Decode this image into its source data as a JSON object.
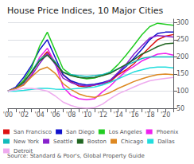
{
  "chart_data": {
    "type": "line",
    "title": "House Price Indices, 10 Major Cities",
    "annotations": [
      "Source: Standard & Poor's, Global Property Guide"
    ],
    "categories": [
      "'00",
      null,
      "'02",
      null,
      "'04",
      null,
      "'06",
      null,
      "'08",
      null,
      "'10",
      null,
      "'12",
      null,
      "'14",
      null,
      "'16",
      null,
      "'18",
      null,
      "'20",
      null
    ],
    "series": [
      {
        "name": "San Francisco",
        "color": "#dd1111",
        "values": [
          100,
          110,
          128,
          155,
          190,
          215,
          185,
          148,
          128,
          115,
          112,
          118,
          122,
          128,
          148,
          162,
          180,
          205,
          228,
          250,
          260,
          265
        ]
      },
      {
        "name": "San Diego",
        "color": "#1111cc",
        "values": [
          100,
          112,
          140,
          175,
          220,
          250,
          198,
          148,
          130,
          122,
          118,
          120,
          125,
          132,
          152,
          172,
          196,
          222,
          250,
          268,
          272,
          272
        ]
      },
      {
        "name": "Los Angeles",
        "color": "#22cc22",
        "values": [
          100,
          108,
          132,
          168,
          230,
          272,
          218,
          165,
          148,
          140,
          136,
          138,
          146,
          156,
          178,
          205,
          234,
          264,
          288,
          298,
          295,
          292
        ]
      },
      {
        "name": "Phoenix",
        "color": "#ee22ee",
        "values": [
          100,
          108,
          118,
          148,
          198,
          225,
          182,
          112,
          88,
          78,
          75,
          78,
          98,
          115,
          138,
          158,
          172,
          188,
          198,
          208,
          210,
          205
        ]
      },
      {
        "name": "New York",
        "color": "#11bbbb",
        "values": [
          100,
          108,
          125,
          158,
          192,
          208,
          185,
          155,
          148,
          145,
          143,
          145,
          148,
          155,
          165,
          175,
          185,
          195,
          200,
          200,
          200,
          200
        ]
      },
      {
        "name": "Seattle",
        "color": "#8822cc",
        "values": [
          100,
          108,
          120,
          145,
          180,
          210,
          178,
          138,
          125,
          118,
          115,
          118,
          122,
          132,
          155,
          178,
          208,
          232,
          255,
          262,
          260,
          258
        ]
      },
      {
        "name": "Boston",
        "color": "#226622",
        "values": [
          100,
          108,
          126,
          155,
          188,
          205,
          182,
          155,
          145,
          140,
          138,
          140,
          145,
          152,
          165,
          178,
          192,
          208,
          218,
          230,
          238,
          240
        ]
      },
      {
        "name": "Chicago",
        "color": "#dd8822",
        "values": [
          100,
          108,
          118,
          142,
          162,
          170,
          152,
          122,
          105,
          92,
          85,
          82,
          88,
          96,
          108,
          118,
          128,
          136,
          143,
          148,
          150,
          148
        ]
      },
      {
        "name": "Dallas",
        "color": "#22dddd",
        "values": [
          100,
          100,
          102,
          105,
          108,
          108,
          106,
          105,
          106,
          108,
          110,
          112,
          118,
          126,
          136,
          146,
          156,
          162,
          168,
          170,
          170,
          168
        ]
      },
      {
        "name": "Detroit",
        "color": "#eeaaee",
        "values": [
          100,
          104,
          108,
          108,
          105,
          100,
          86,
          68,
          58,
          52,
          50,
          52,
          62,
          78,
          92,
          102,
          112,
          122,
          130,
          134,
          137,
          140
        ]
      }
    ],
    "ylim": [
      50,
      310
    ],
    "yticks": [
      50,
      100,
      150,
      200,
      250,
      300
    ],
    "grid": true,
    "legend": "bottom"
  }
}
